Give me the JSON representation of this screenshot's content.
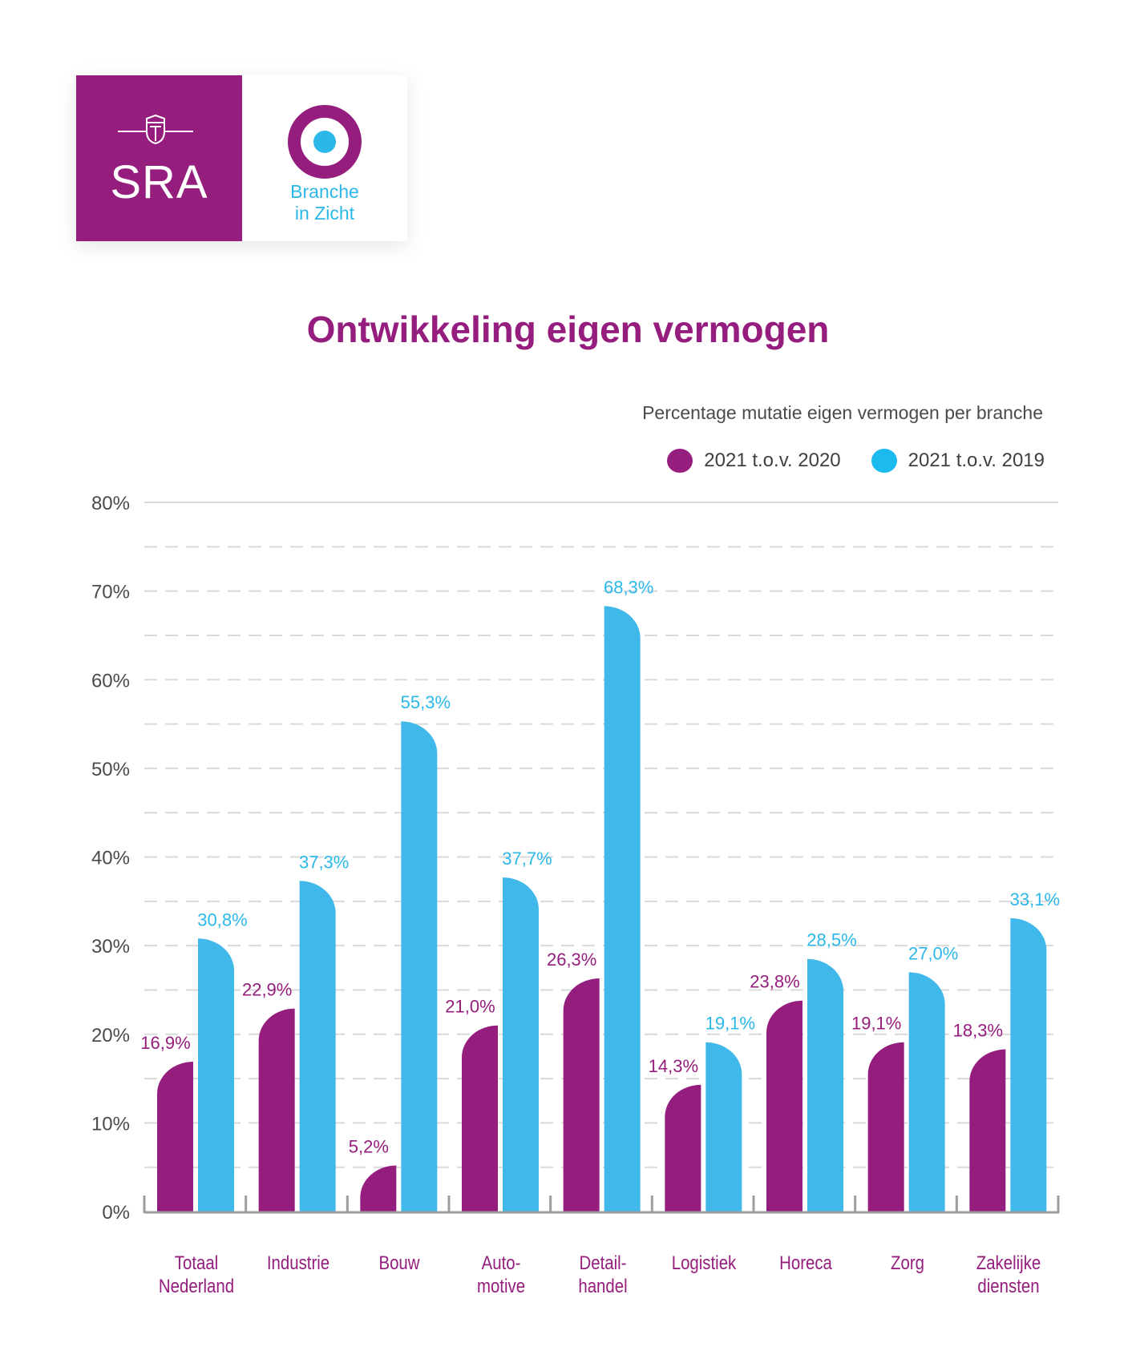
{
  "logo": {
    "sra_text": "SRA",
    "biz_line1": "Branche",
    "biz_line2": "in Zicht"
  },
  "colors": {
    "purple": "#951d7d",
    "blue": "#40b8ea",
    "blue_text": "#2bb8e9",
    "grid": "#d9d9d9",
    "axis": "#9e9e9e",
    "tick_text": "#4a4a4a"
  },
  "chart_data": {
    "type": "bar",
    "title": "Ontwikkeling eigen vermogen",
    "subtitle": "Percentage mutatie eigen vermogen per branche",
    "xlabel": "",
    "ylabel": "",
    "ylim": [
      0,
      80
    ],
    "yticks": [
      0,
      10,
      20,
      30,
      40,
      50,
      60,
      70,
      80
    ],
    "ytick_labels": [
      "0%",
      "10%",
      "20%",
      "30%",
      "40%",
      "50%",
      "60%",
      "70%",
      "80%"
    ],
    "grid": true,
    "legend_position": "top-right",
    "categories": [
      [
        "Totaal",
        "Nederland"
      ],
      [
        "Industrie"
      ],
      [
        "Bouw"
      ],
      [
        "Auto-",
        "motive"
      ],
      [
        "Detail-",
        "handel"
      ],
      [
        "Logistiek"
      ],
      [
        "Horeca"
      ],
      [
        "Zorg"
      ],
      [
        "Zakelijke",
        "diensten"
      ]
    ],
    "series": [
      {
        "name": "2021 t.o.v. 2020",
        "color": "#951d7d",
        "values": [
          16.9,
          22.9,
          5.2,
          21.0,
          26.3,
          14.3,
          23.8,
          19.1,
          18.3
        ],
        "labels": [
          "16,9%",
          "22,9%",
          "5,2%",
          "21,0%",
          "26,3%",
          "14,3%",
          "23,8%",
          "19,1%",
          "18,3%"
        ]
      },
      {
        "name": "2021 t.o.v. 2019",
        "color": "#40b8ea",
        "values": [
          30.8,
          37.3,
          55.3,
          37.7,
          68.3,
          19.1,
          28.5,
          27.0,
          33.1
        ],
        "labels": [
          "30,8%",
          "37,3%",
          "55,3%",
          "37,7%",
          "68,3%",
          "19,1%",
          "28,5%",
          "27,0%",
          "33,1%"
        ]
      }
    ]
  }
}
